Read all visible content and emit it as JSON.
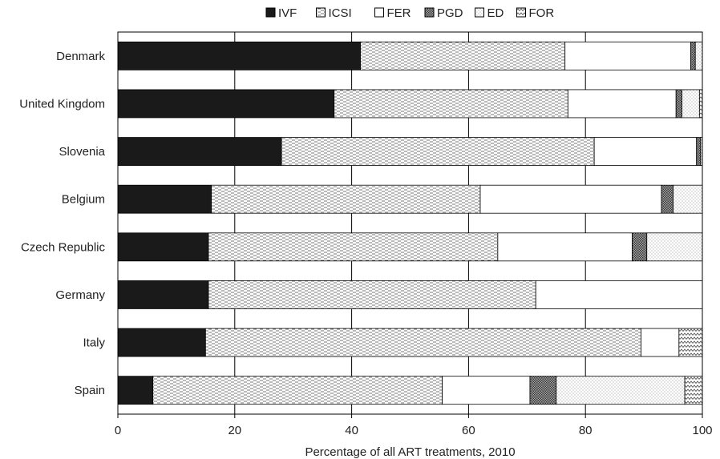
{
  "chart_data": {
    "type": "bar",
    "orientation": "horizontal",
    "stacked": true,
    "title": "",
    "xlabel": "Percentage of all ART treatments, 2010",
    "ylabel": "",
    "xlim": [
      0,
      100
    ],
    "xticks": [
      0,
      20,
      40,
      60,
      80,
      100
    ],
    "grid": "vertical",
    "legend_position": "top",
    "categories": [
      "Denmark",
      "United Kingdom",
      "Slovenia",
      "Belgium",
      "Czech Republic",
      "Germany",
      "Italy",
      "Spain"
    ],
    "series": [
      {
        "name": "IVF",
        "pattern": "solid-black",
        "values": [
          41.5,
          37.0,
          28.0,
          16.0,
          15.5,
          15.5,
          15.0,
          6.0
        ]
      },
      {
        "name": "ICSI",
        "pattern": "dashes",
        "values": [
          35.0,
          40.0,
          53.5,
          46.0,
          49.5,
          56.0,
          74.5,
          49.5
        ]
      },
      {
        "name": "FER",
        "pattern": "white",
        "values": [
          21.5,
          18.5,
          17.5,
          31.0,
          23.0,
          28.5,
          6.5,
          15.0
        ]
      },
      {
        "name": "PGD",
        "pattern": "crosshatch",
        "values": [
          0.8,
          1.0,
          0.7,
          2.0,
          2.5,
          0,
          0,
          4.5
        ]
      },
      {
        "name": "ED",
        "pattern": "dots",
        "values": [
          1.2,
          3.0,
          0.3,
          5.0,
          9.5,
          0,
          0,
          22.0
        ]
      },
      {
        "name": "FOR",
        "pattern": "zigzag",
        "values": [
          0,
          0.5,
          0,
          0,
          0,
          0,
          4.0,
          3.0
        ]
      }
    ]
  }
}
